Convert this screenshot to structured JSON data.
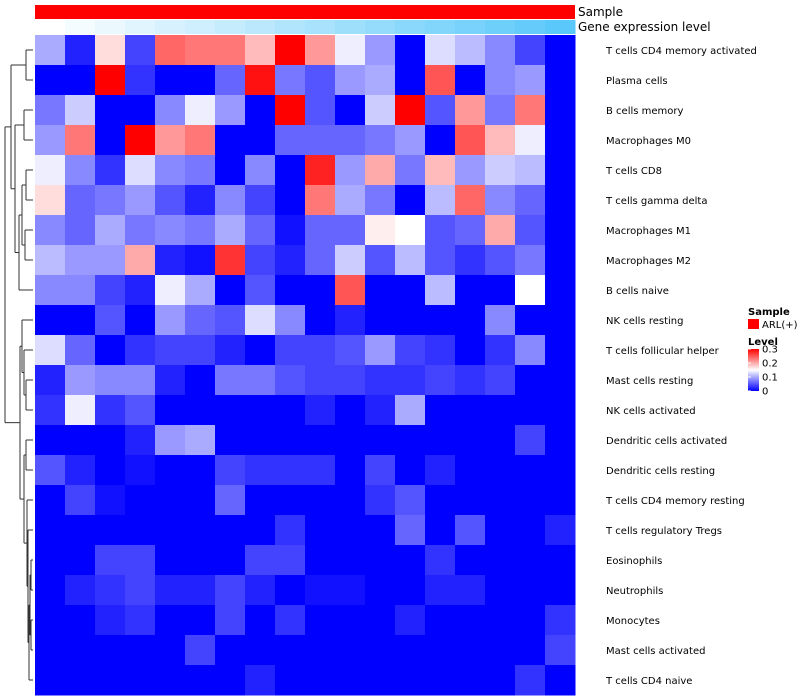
{
  "chart_data": {
    "type": "heatmap",
    "annotations": [
      {
        "name": "Sample",
        "color": "#ff0000"
      },
      {
        "name": "Gene expression level",
        "gradient_low": "#ffffff",
        "gradient_high": "#5ac8fa"
      }
    ],
    "rows": [
      "T cells CD4 memory activated",
      "Plasma cells",
      "B cells memory",
      "Macrophages M0",
      "T cells CD8",
      "T cells gamma delta",
      "Macrophages M1",
      "Macrophages M2",
      "B cells naive",
      "NK cells resting",
      "T cells follicular helper",
      "Mast cells resting",
      "NK cells activated",
      "Dendritic cells activated",
      "Dendritic cells resting",
      "T cells CD4 memory resting",
      "T cells regulatory  Tregs",
      "Eosinophils",
      "Neutrophils",
      "Monocytes",
      "Mast cells activated",
      "T cells CD4 naive"
    ],
    "n_columns": 18,
    "values": [
      [
        0.1,
        0.02,
        0.17,
        0.04,
        0.24,
        0.23,
        0.23,
        0.19,
        0.3,
        0.21,
        0.14,
        0.09,
        0.0,
        0.13,
        0.11,
        0.08,
        0.04,
        0.0
      ],
      [
        0.0,
        0.0,
        0.3,
        0.03,
        0.0,
        0.0,
        0.06,
        0.29,
        0.07,
        0.05,
        0.09,
        0.1,
        0.0,
        0.25,
        0.0,
        0.08,
        0.09,
        0.0
      ],
      [
        0.07,
        0.12,
        0.0,
        0.0,
        0.08,
        0.14,
        0.09,
        0.0,
        0.3,
        0.05,
        0.0,
        0.12,
        0.3,
        0.05,
        0.21,
        0.07,
        0.23,
        0.0
      ],
      [
        0.09,
        0.23,
        0.0,
        0.3,
        0.21,
        0.23,
        0.0,
        0.0,
        0.06,
        0.06,
        0.06,
        0.07,
        0.09,
        0.0,
        0.25,
        0.19,
        0.14,
        0.0
      ],
      [
        0.14,
        0.08,
        0.03,
        0.13,
        0.08,
        0.07,
        0.0,
        0.08,
        0.0,
        0.28,
        0.09,
        0.2,
        0.07,
        0.19,
        0.09,
        0.12,
        0.11,
        0.0
      ],
      [
        0.17,
        0.06,
        0.07,
        0.09,
        0.05,
        0.02,
        0.08,
        0.04,
        0.0,
        0.23,
        0.1,
        0.07,
        0.0,
        0.11,
        0.24,
        0.08,
        0.06,
        0.0
      ],
      [
        0.08,
        0.06,
        0.1,
        0.07,
        0.08,
        0.07,
        0.1,
        0.06,
        0.01,
        0.06,
        0.06,
        0.16,
        0.15,
        0.05,
        0.06,
        0.2,
        0.05,
        0.0
      ],
      [
        0.11,
        0.09,
        0.09,
        0.2,
        0.02,
        0.01,
        0.27,
        0.04,
        0.02,
        0.06,
        0.12,
        0.05,
        0.11,
        0.05,
        0.03,
        0.05,
        0.07,
        0.0
      ],
      [
        0.08,
        0.08,
        0.04,
        0.02,
        0.14,
        0.1,
        0.0,
        0.05,
        0.0,
        0.0,
        0.25,
        0.0,
        0.0,
        0.11,
        0.0,
        0.0,
        0.15,
        0.0
      ],
      [
        0.0,
        0.0,
        0.05,
        0.0,
        0.09,
        0.06,
        0.05,
        0.13,
        0.08,
        0.0,
        0.02,
        0.0,
        0.0,
        0.0,
        0.0,
        0.08,
        0.0,
        0.0
      ],
      [
        0.13,
        0.06,
        0.0,
        0.03,
        0.04,
        0.04,
        0.02,
        0.0,
        0.04,
        0.04,
        0.05,
        0.09,
        0.04,
        0.03,
        0.0,
        0.03,
        0.08,
        0.0
      ],
      [
        0.02,
        0.09,
        0.08,
        0.08,
        0.02,
        0.0,
        0.07,
        0.07,
        0.05,
        0.04,
        0.04,
        0.03,
        0.03,
        0.04,
        0.03,
        0.04,
        0.0,
        0.0
      ],
      [
        0.03,
        0.14,
        0.03,
        0.05,
        0.0,
        0.0,
        0.0,
        0.0,
        0.0,
        0.02,
        0.0,
        0.02,
        0.1,
        0.0,
        0.0,
        0.0,
        0.0,
        0.0
      ],
      [
        0.0,
        0.0,
        0.0,
        0.02,
        0.09,
        0.1,
        0.0,
        0.0,
        0.0,
        0.0,
        0.0,
        0.0,
        0.0,
        0.0,
        0.0,
        0.0,
        0.04,
        0.0
      ],
      [
        0.05,
        0.02,
        0.0,
        0.01,
        0.0,
        0.0,
        0.04,
        0.03,
        0.03,
        0.03,
        0.0,
        0.04,
        0.0,
        0.02,
        0.0,
        0.0,
        0.0,
        0.0
      ],
      [
        0.0,
        0.04,
        0.01,
        0.0,
        0.0,
        0.0,
        0.06,
        0.0,
        0.0,
        0.0,
        0.0,
        0.03,
        0.05,
        0.0,
        0.0,
        0.0,
        0.0,
        0.0
      ],
      [
        0.0,
        0.0,
        0.0,
        0.0,
        0.0,
        0.0,
        0.0,
        0.0,
        0.03,
        0.0,
        0.0,
        0.0,
        0.06,
        0.0,
        0.05,
        0.0,
        0.0,
        0.02
      ],
      [
        0.0,
        0.0,
        0.04,
        0.04,
        0.0,
        0.0,
        0.0,
        0.04,
        0.04,
        0.0,
        0.0,
        0.0,
        0.0,
        0.03,
        0.0,
        0.0,
        0.0,
        0.0
      ],
      [
        0.0,
        0.02,
        0.03,
        0.04,
        0.02,
        0.02,
        0.04,
        0.02,
        0.0,
        0.01,
        0.01,
        0.0,
        0.0,
        0.02,
        0.02,
        0.0,
        0.0,
        0.0
      ],
      [
        0.0,
        0.0,
        0.02,
        0.03,
        0.0,
        0.0,
        0.04,
        0.0,
        0.03,
        0.0,
        0.0,
        0.0,
        0.02,
        0.0,
        0.0,
        0.0,
        0.0,
        0.03
      ],
      [
        0.0,
        0.0,
        0.0,
        0.0,
        0.0,
        0.04,
        0.0,
        0.0,
        0.0,
        0.0,
        0.0,
        0.0,
        0.0,
        0.0,
        0.0,
        0.0,
        0.0,
        0.04
      ],
      [
        0.0,
        0.0,
        0.0,
        0.0,
        0.0,
        0.0,
        0.0,
        0.02,
        0.0,
        0.0,
        0.0,
        0.0,
        0.0,
        0.0,
        0.0,
        0.0,
        0.03,
        0.0
      ]
    ],
    "gene_expression_level": [
      0.0,
      0.06,
      0.12,
      0.18,
      0.24,
      0.29,
      0.35,
      0.41,
      0.47,
      0.53,
      0.59,
      0.65,
      0.71,
      0.76,
      0.82,
      0.88,
      0.94,
      1.0
    ],
    "color_scale": {
      "min": 0,
      "mid": 0.15,
      "max": 0.3,
      "low_color": "#0000ff",
      "mid_color": "#ffffff",
      "high_color": "#ff0000"
    },
    "legend": {
      "sample_title": "Sample",
      "sample_entry": "ARL(+)",
      "sample_color": "#ff0000",
      "level_title": "Level",
      "ticks": [
        {
          "value": 0.3,
          "label": "0.3"
        },
        {
          "value": 0.2,
          "label": "0.2"
        },
        {
          "value": 0.1,
          "label": "0.1"
        },
        {
          "value": 0,
          "label": "0"
        }
      ]
    }
  }
}
